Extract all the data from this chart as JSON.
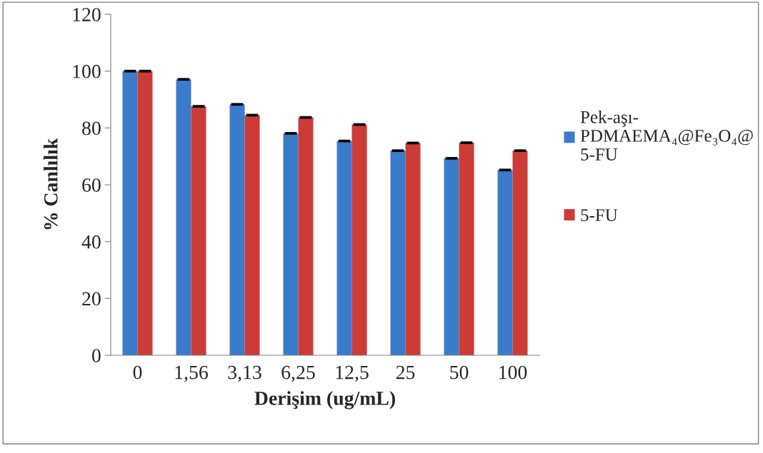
{
  "chart_data": {
    "type": "bar",
    "xlabel": "Derişim (ug/mL)",
    "ylabel": "% Canlılık",
    "categories": [
      "0",
      "1,56",
      "3,13",
      "6,25",
      "12,5",
      "25",
      "50",
      "100"
    ],
    "series": [
      {
        "name": "Pek-aşı-\nPDMAEMA₄@Fe₃O₄@\n5-FU",
        "color": "#3a7bcb",
        "values": [
          100,
          97.1,
          88.3,
          78.1,
          75.4,
          72.0,
          69.3,
          65.2
        ],
        "errors": [
          0.2,
          0.2,
          0.2,
          0.2,
          0.2,
          0.2,
          0.2,
          0.2
        ]
      },
      {
        "name": "5-FU",
        "color": "#cc3b36",
        "values": [
          100,
          87.6,
          84.5,
          83.7,
          81.2,
          74.7,
          74.8,
          72.0
        ],
        "errors": [
          0.2,
          0.2,
          0.2,
          0.2,
          0.2,
          0.2,
          0.2,
          0.2
        ]
      }
    ],
    "ylim": [
      0,
      120
    ],
    "yticks": [
      0,
      20,
      40,
      60,
      80,
      100,
      120
    ],
    "grid": false,
    "legend": "right"
  }
}
